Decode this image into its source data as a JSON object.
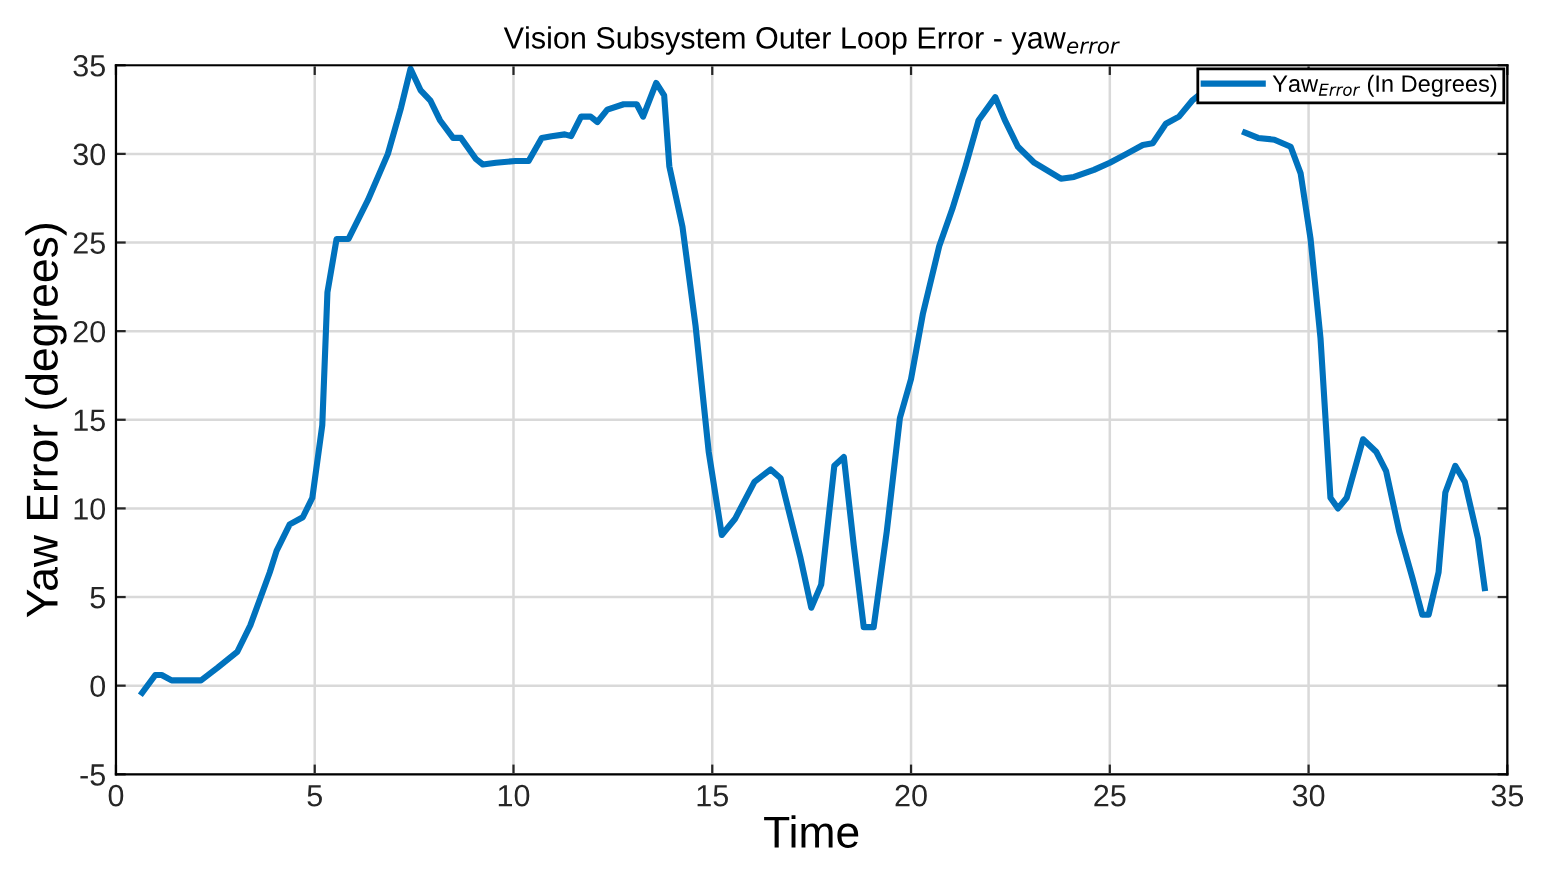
{
  "chart_data": {
    "type": "line",
    "title": "Vision Subsystem Outer Loop Error - yaw$_{error}$",
    "xlabel": "Time",
    "ylabel": "Yaw Error (degrees)",
    "xlim": [
      0,
      35
    ],
    "xticks": [
      0,
      5,
      10,
      15,
      20,
      25,
      30,
      35
    ],
    "ylim": [
      -5,
      35
    ],
    "yticks": [
      -5,
      0,
      5,
      10,
      15,
      20,
      25,
      30,
      35
    ],
    "grid": true,
    "legend": "top right",
    "line_style": "solid",
    "series": [
      {
        "name": "Yaw$_{Error}$ (In Degrees)",
        "color": "#0072bd",
        "x": [
          0.66,
          0.99,
          1.15,
          1.4,
          2.14,
          2.55,
          3.05,
          3.38,
          3.87,
          4.04,
          4.37,
          4.7,
          4.94,
          5.19,
          5.32,
          5.55,
          5.85,
          6.34,
          6.84,
          7.17,
          7.41,
          7.66,
          7.91,
          8.15,
          8.48,
          8.68,
          9.06,
          9.23,
          9.56,
          10.05,
          10.38,
          10.71,
          10.96,
          11.29,
          11.45,
          11.7,
          11.94,
          12.11,
          12.36,
          12.77,
          13.1,
          13.26,
          13.59,
          13.79,
          13.92,
          14.25,
          14.58,
          14.91,
          15.24,
          15.57,
          16.06,
          16.47,
          16.72,
          17.22,
          17.49,
          17.74,
          18.07,
          18.31,
          18.56,
          18.81,
          19.06,
          19.39,
          19.72,
          20.0,
          20.3,
          20.71,
          21.04,
          21.37,
          21.7,
          22.12,
          22.36,
          22.69,
          23.1,
          23.77,
          24.1,
          24.6,
          25.0,
          25.42,
          25.83,
          26.08,
          26.41,
          26.74,
          27.07,
          27.4,
          27.8,
          28.4,
          28.73,
          29.14,
          29.55,
          29.8,
          30.05,
          30.3,
          30.55,
          30.74,
          30.96,
          31.37,
          31.7,
          31.95,
          32.28,
          32.61,
          32.86,
          33.02,
          33.27,
          33.44,
          33.69,
          33.93,
          34.26,
          34.43
        ],
        "values": [
          -0.4,
          0.6,
          0.6,
          0.3,
          0.3,
          1.0,
          1.9,
          3.4,
          6.4,
          7.6,
          9.1,
          9.5,
          10.6,
          14.7,
          22.2,
          25.2,
          25.2,
          27.4,
          30.0,
          32.6,
          34.8,
          33.6,
          33.0,
          31.9,
          30.9,
          30.9,
          29.7,
          29.4,
          29.5,
          29.6,
          29.6,
          30.9,
          31.0,
          31.1,
          31.0,
          32.1,
          32.1,
          31.8,
          32.5,
          32.8,
          32.8,
          32.1,
          34.0,
          33.3,
          29.3,
          25.9,
          20.3,
          13.2,
          8.5,
          9.4,
          11.5,
          12.2,
          11.7,
          7.2,
          4.4,
          5.7,
          12.4,
          12.9,
          7.9,
          3.3,
          3.3,
          8.7,
          15.1,
          17.3,
          21.0,
          24.8,
          26.9,
          29.3,
          31.9,
          33.2,
          31.9,
          30.4,
          29.5,
          28.6,
          28.7,
          29.1,
          29.5,
          30.0,
          30.5,
          30.6,
          31.7,
          32.1,
          33.0,
          33.6,
          null,
          31.2,
          30.9,
          30.8,
          30.4,
          28.9,
          25.2,
          19.6,
          10.6,
          10.0,
          10.6,
          13.9,
          13.2,
          12.1,
          8.7,
          6.1,
          4.0,
          4.0,
          6.4,
          10.9,
          12.4,
          11.5,
          8.3,
          5.5
        ]
      }
    ]
  }
}
